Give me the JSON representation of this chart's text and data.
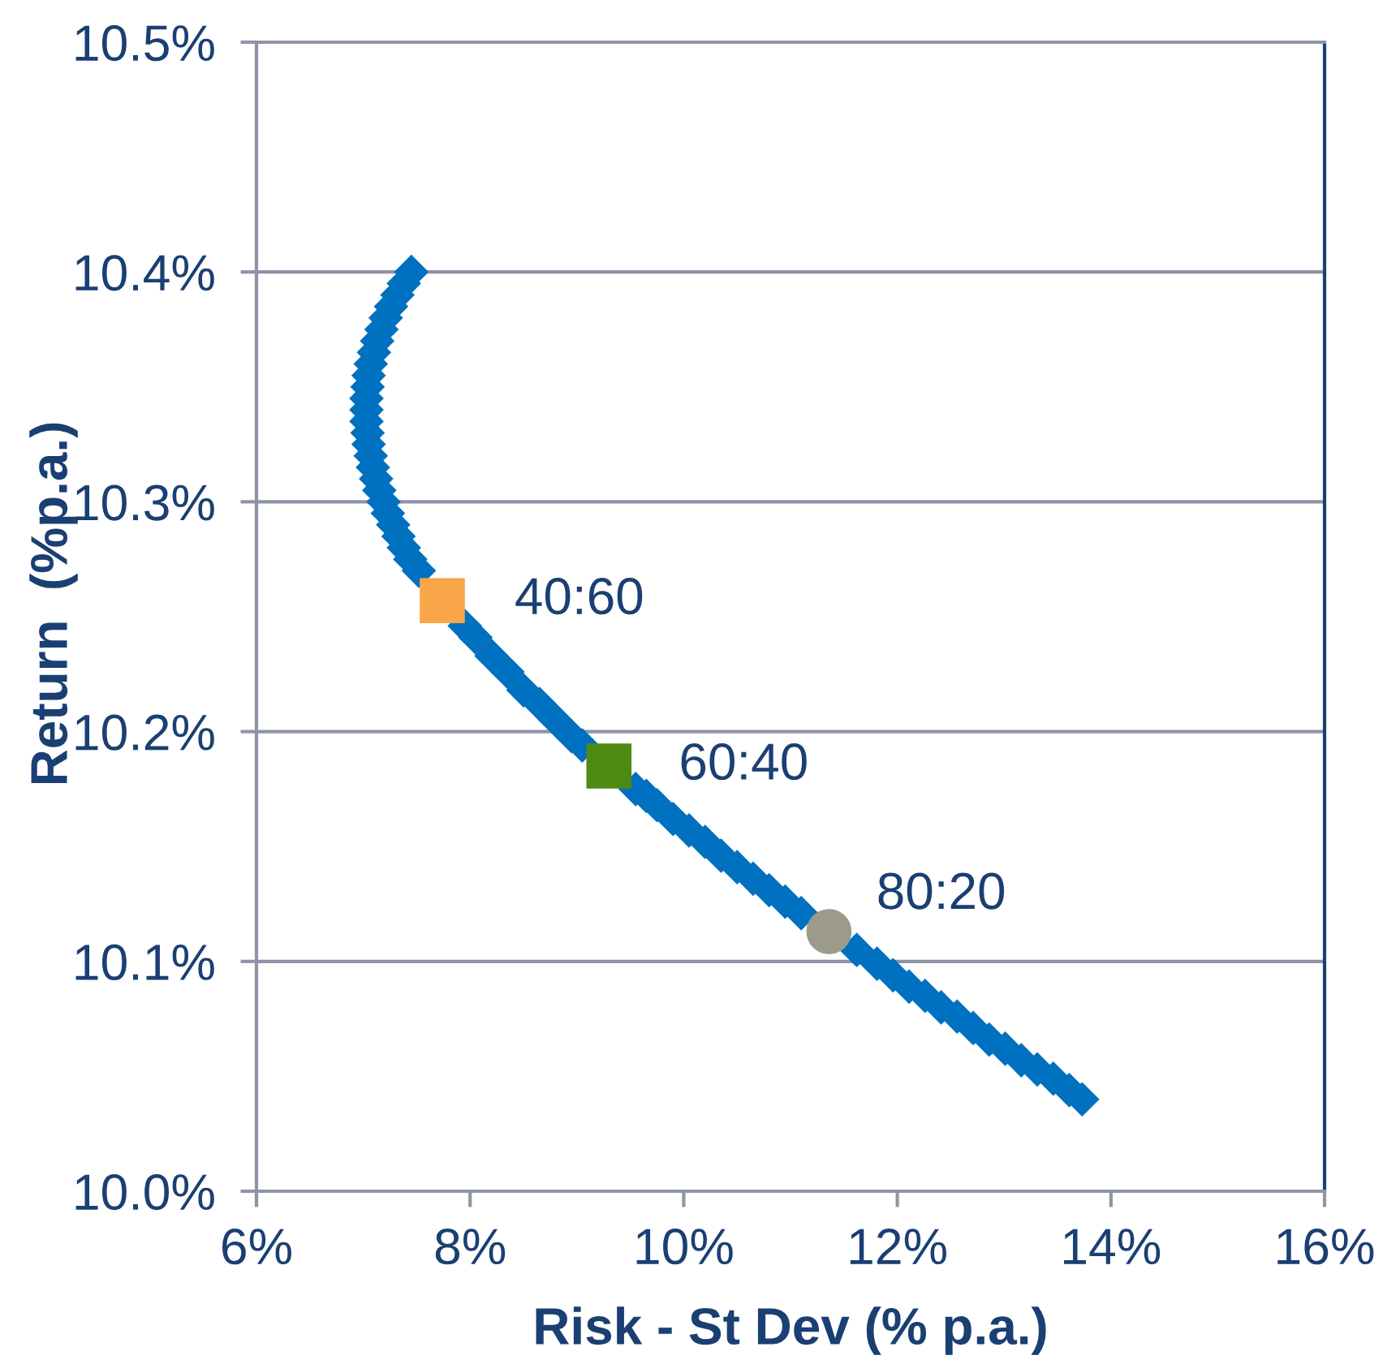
{
  "chart_data": {
    "type": "scatter",
    "xlabel": "Risk - St Dev (% p.a.)",
    "ylabel": "Return  (%p.a.)",
    "xlim": [
      6,
      16
    ],
    "xticks": [
      {
        "value": 6,
        "label": "6%"
      },
      {
        "value": 8,
        "label": "8%"
      },
      {
        "value": 10,
        "label": "10%"
      },
      {
        "value": 12,
        "label": "12%"
      },
      {
        "value": 14,
        "label": "14%"
      },
      {
        "value": 16,
        "label": "16%"
      }
    ],
    "ylim": [
      10.0,
      10.5
    ],
    "yticks": [
      {
        "value": 10.0,
        "label": "10.0%"
      },
      {
        "value": 10.1,
        "label": "10.1%"
      },
      {
        "value": 10.2,
        "label": "10.2%"
      },
      {
        "value": 10.3,
        "label": "10.3%"
      },
      {
        "value": 10.4,
        "label": "10.4%"
      },
      {
        "value": 10.5,
        "label": "10.5%"
      }
    ],
    "grid": "y",
    "series": [
      {
        "color": "#0070c0",
        "marker": "diamond",
        "x": [
          7.45,
          7.38,
          7.32,
          7.26,
          7.21,
          7.17,
          7.13,
          7.1,
          7.07,
          7.05,
          7.04,
          7.03,
          7.03,
          7.03,
          7.04,
          7.05,
          7.07,
          7.09,
          7.12,
          7.15,
          7.19,
          7.23,
          7.28,
          7.33,
          7.38,
          7.44,
          7.52,
          7.95,
          8.05,
          8.2,
          8.35,
          8.5,
          8.65,
          8.8,
          8.95,
          9.05,
          9.55,
          9.65,
          9.75,
          9.9,
          10.05,
          10.2,
          10.35,
          10.5,
          10.65,
          10.8,
          10.95,
          11.1,
          11.62,
          11.81,
          11.96,
          12.11,
          12.26,
          12.41,
          12.56,
          12.71,
          12.86,
          13.01,
          13.16,
          13.31,
          13.46,
          13.61,
          13.73
        ],
        "values": [
          10.4,
          10.395,
          10.39,
          10.385,
          10.38,
          10.375,
          10.37,
          10.365,
          10.36,
          10.355,
          10.35,
          10.345,
          10.34,
          10.335,
          10.33,
          10.325,
          10.32,
          10.315,
          10.31,
          10.305,
          10.3,
          10.295,
          10.29,
          10.285,
          10.28,
          10.275,
          10.27,
          10.246,
          10.241,
          10.233,
          10.226,
          10.218,
          10.212,
          10.205,
          10.198,
          10.194,
          10.175,
          10.172,
          10.168,
          10.162,
          10.157,
          10.152,
          10.146,
          10.141,
          10.136,
          10.131,
          10.126,
          10.121,
          10.105,
          10.099,
          10.094,
          10.089,
          10.085,
          10.08,
          10.076,
          10.071,
          10.066,
          10.062,
          10.057,
          10.053,
          10.049,
          10.044,
          10.04
        ]
      },
      {
        "name": "40:60",
        "color": "#f9a54a",
        "marker": "square",
        "x": [
          7.74
        ],
        "values": [
          10.257
        ]
      },
      {
        "name": "60:40",
        "color": "#4e8a12",
        "marker": "square",
        "x": [
          9.3
        ],
        "values": [
          10.185
        ]
      },
      {
        "name": "80:20",
        "color": "#9c9a8a",
        "marker": "circle",
        "x": [
          11.36
        ],
        "values": [
          10.113
        ]
      }
    ]
  }
}
